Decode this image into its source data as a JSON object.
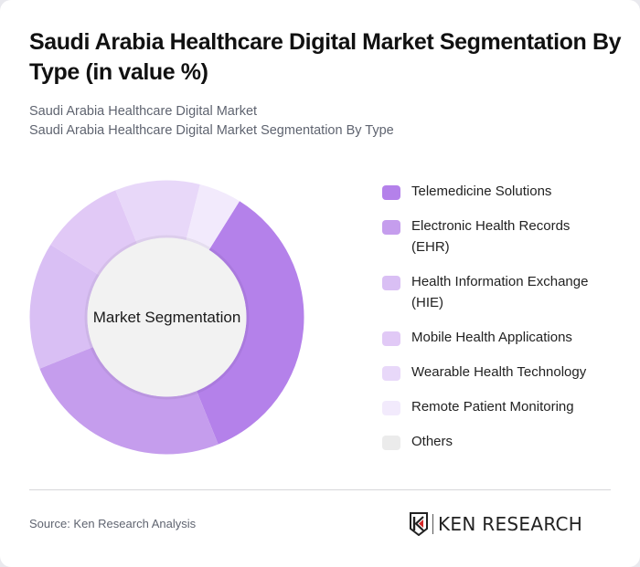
{
  "header": {
    "title": "Saudi Arabia Healthcare Digital Market Segmentation By Type (in value %)",
    "subtitle_lines": [
      "Saudi Arabia Healthcare Digital Market",
      "Saudi Arabia Healthcare Digital Market Segmentation By Type"
    ]
  },
  "chart_data": {
    "type": "pie",
    "variant": "donut",
    "title": "Saudi Arabia Healthcare Digital Market Segmentation By Type (in value %)",
    "center_label": "Market Segmentation",
    "categories": [
      "Telemedicine Solutions",
      "Electronic Health Records (EHR)",
      "Health Information Exchange (HIE)",
      "Mobile Health Applications",
      "Wearable Health Technology",
      "Remote Patient Monitoring",
      "Others"
    ],
    "values": [
      35,
      25,
      15,
      10,
      10,
      5,
      0
    ],
    "colors": [
      "#b481ea",
      "#c59ded",
      "#d9bff4",
      "#e1c9f6",
      "#e8d8f9",
      "#f2eafc",
      "#ebebeb"
    ],
    "start_angle_deg": 32,
    "legend_position": "right",
    "unit": "%"
  },
  "legend": {
    "items": [
      {
        "label": "Telemedicine Solutions",
        "color": "#b481ea"
      },
      {
        "label": "Electronic Health Records (EHR)",
        "color": "#c59ded"
      },
      {
        "label": "Health Information Exchange (HIE)",
        "color": "#d9bff4"
      },
      {
        "label": "Mobile Health Applications",
        "color": "#e1c9f6"
      },
      {
        "label": "Wearable Health Technology",
        "color": "#e8d8f9"
      },
      {
        "label": "Remote Patient Monitoring",
        "color": "#f2eafc"
      },
      {
        "label": "Others",
        "color": "#ebebeb"
      }
    ]
  },
  "footer": {
    "source": "Source: Ken Research Analysis",
    "logo_text": "KEN RESEARCH"
  },
  "colors": {
    "center_fill": "#f2f2f2",
    "title": "#111111",
    "subtitle": "#5f6470"
  }
}
